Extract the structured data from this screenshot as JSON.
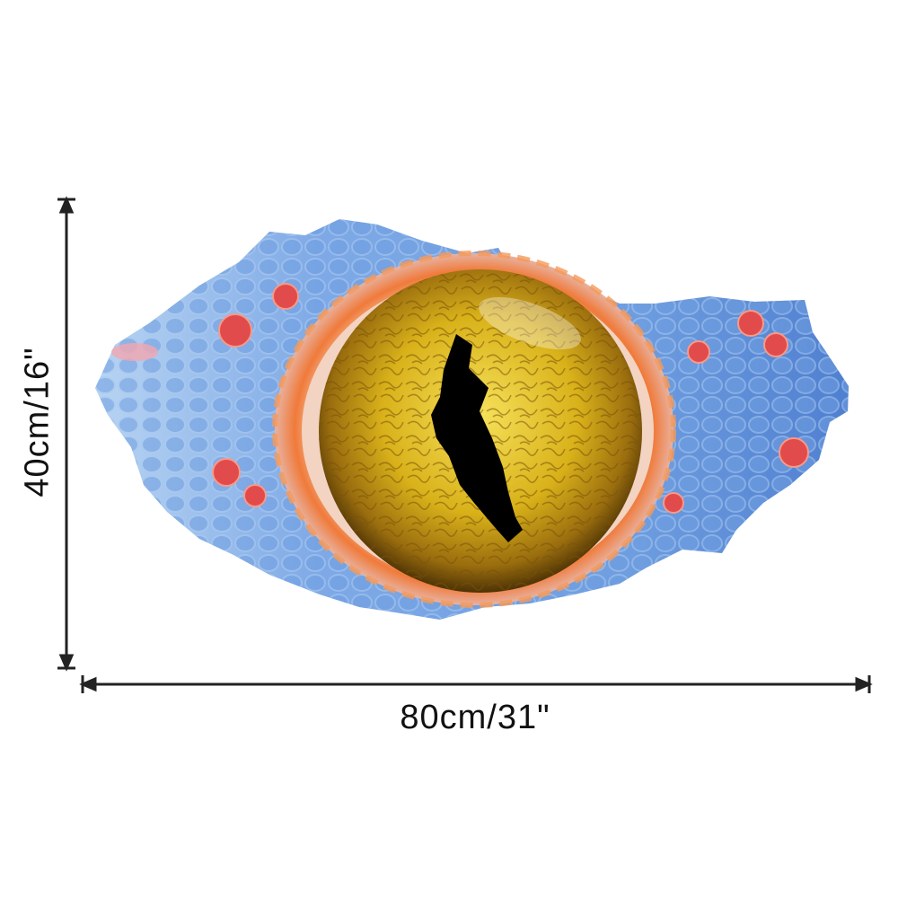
{
  "dimensions": {
    "width_label": "80cm/31\"",
    "height_label": "40cm/16\""
  },
  "artwork": {
    "subject": "lizard-eye-wall-sticker",
    "colors": {
      "iris": "#d9b21a",
      "iris_dark": "#6b4a08",
      "pupil": "#000000",
      "scales_blue": "#5e8fd8",
      "scales_light": "#a9c9f0",
      "scales_red": "#e24b4b",
      "rim_orange": "#f07a3a"
    }
  },
  "colors": {
    "background": "#ffffff",
    "dimension_line": "#222222"
  }
}
